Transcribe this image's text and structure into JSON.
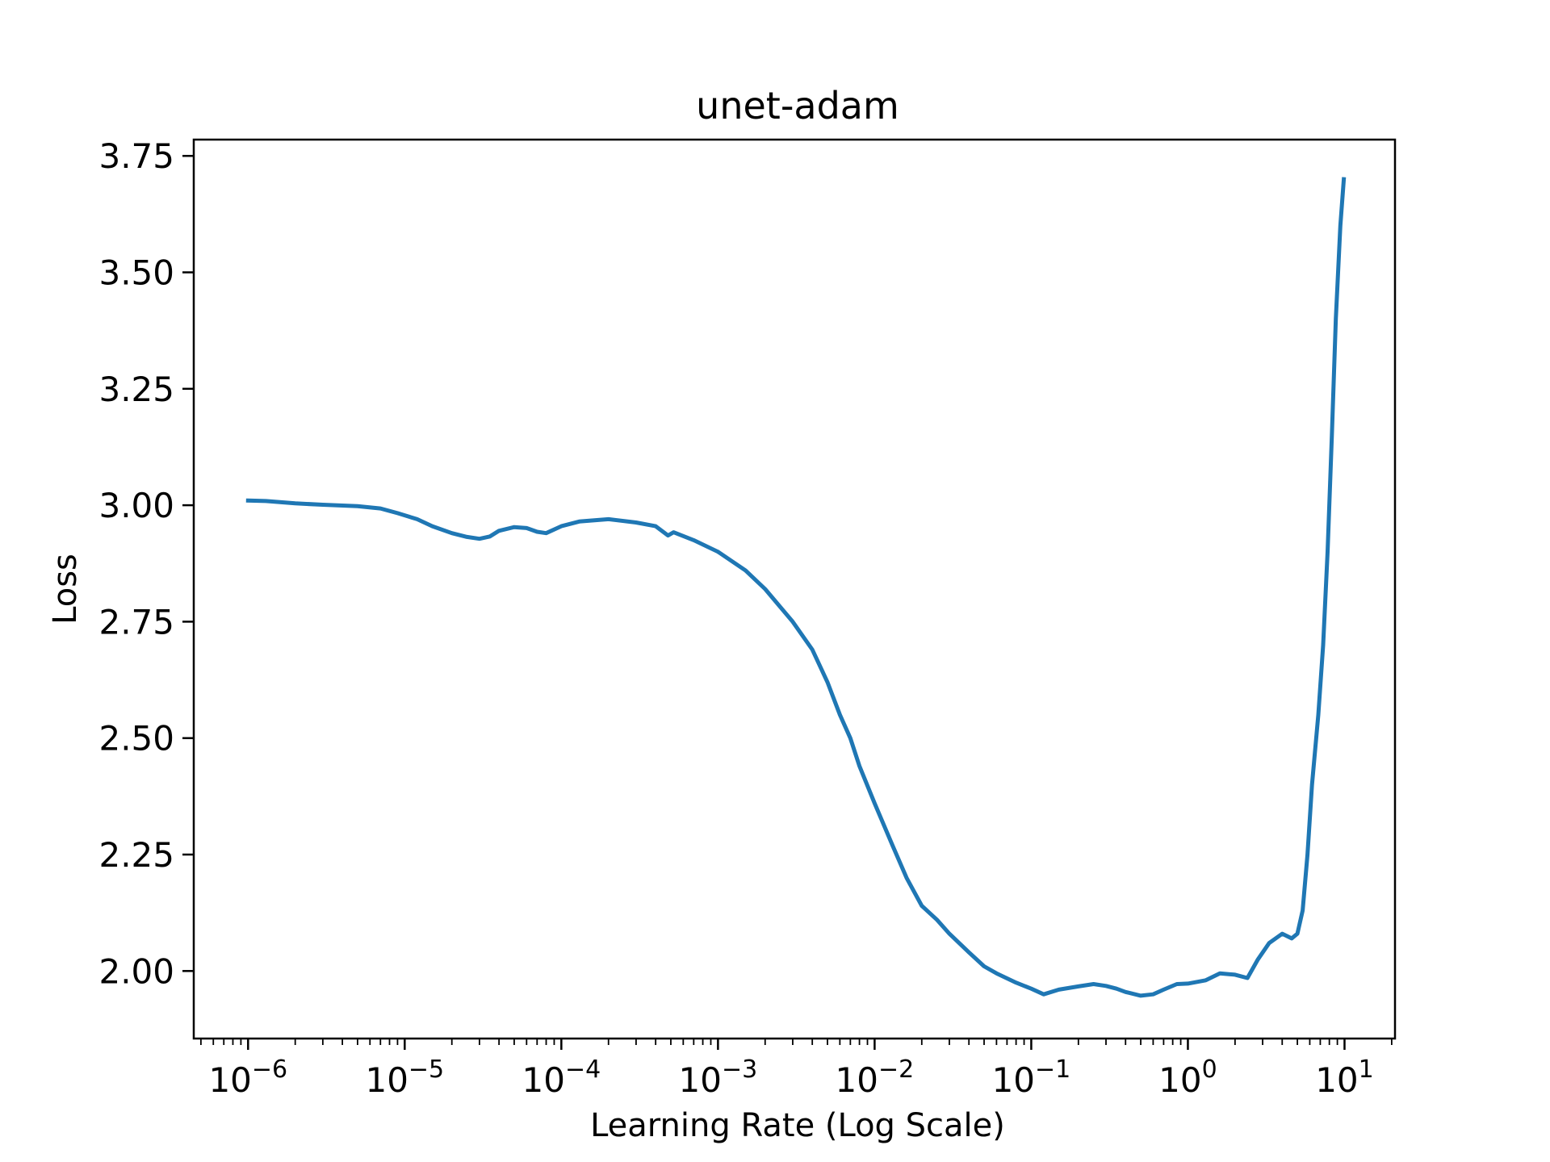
{
  "chart_data": {
    "type": "line",
    "title": "unet-adam",
    "xlabel": "Learning Rate (Log Scale)",
    "ylabel": "Loss",
    "xscale": "log",
    "xlim": [
      4.5e-07,
      21
    ],
    "ylim": [
      1.855,
      3.785
    ],
    "grid": false,
    "legend": "none",
    "line_color": "#1f77b4",
    "x_ticks": [
      {
        "value": 1e-06,
        "base": "10",
        "exp": "−6"
      },
      {
        "value": 1e-05,
        "base": "10",
        "exp": "−5"
      },
      {
        "value": 0.0001,
        "base": "10",
        "exp": "−4"
      },
      {
        "value": 0.001,
        "base": "10",
        "exp": "−3"
      },
      {
        "value": 0.01,
        "base": "10",
        "exp": "−2"
      },
      {
        "value": 0.1,
        "base": "10",
        "exp": "−1"
      },
      {
        "value": 1,
        "base": "10",
        "exp": "0"
      },
      {
        "value": 10,
        "base": "10",
        "exp": "1"
      }
    ],
    "y_ticks": [
      {
        "value": 2.0,
        "label": "2.00"
      },
      {
        "value": 2.25,
        "label": "2.25"
      },
      {
        "value": 2.5,
        "label": "2.50"
      },
      {
        "value": 2.75,
        "label": "2.75"
      },
      {
        "value": 3.0,
        "label": "3.00"
      },
      {
        "value": 3.25,
        "label": "3.25"
      },
      {
        "value": 3.5,
        "label": "3.50"
      },
      {
        "value": 3.75,
        "label": "3.75"
      }
    ],
    "series": [
      {
        "points": [
          [
            1e-06,
            3.01
          ],
          [
            1.3e-06,
            3.009
          ],
          [
            2e-06,
            3.004
          ],
          [
            3e-06,
            3.001
          ],
          [
            5e-06,
            2.998
          ],
          [
            7e-06,
            2.993
          ],
          [
            9e-06,
            2.983
          ],
          [
            1.2e-05,
            2.97
          ],
          [
            1.5e-05,
            2.955
          ],
          [
            2e-05,
            2.94
          ],
          [
            2.5e-05,
            2.932
          ],
          [
            3e-05,
            2.928
          ],
          [
            3.5e-05,
            2.933
          ],
          [
            4e-05,
            2.945
          ],
          [
            5e-05,
            2.953
          ],
          [
            6e-05,
            2.951
          ],
          [
            7e-05,
            2.943
          ],
          [
            8e-05,
            2.94
          ],
          [
            0.0001,
            2.955
          ],
          [
            0.00013,
            2.965
          ],
          [
            0.0002,
            2.97
          ],
          [
            0.0003,
            2.963
          ],
          [
            0.0004,
            2.955
          ],
          [
            0.00048,
            2.935
          ],
          [
            0.00052,
            2.942
          ],
          [
            0.0007,
            2.925
          ],
          [
            0.001,
            2.9
          ],
          [
            0.0015,
            2.86
          ],
          [
            0.002,
            2.82
          ],
          [
            0.003,
            2.75
          ],
          [
            0.004,
            2.69
          ],
          [
            0.005,
            2.62
          ],
          [
            0.006,
            2.55
          ],
          [
            0.007,
            2.5
          ],
          [
            0.008,
            2.44
          ],
          [
            0.01,
            2.36
          ],
          [
            0.013,
            2.27
          ],
          [
            0.016,
            2.2
          ],
          [
            0.02,
            2.14
          ],
          [
            0.025,
            2.11
          ],
          [
            0.03,
            2.08
          ],
          [
            0.04,
            2.04
          ],
          [
            0.05,
            2.01
          ],
          [
            0.06,
            1.995
          ],
          [
            0.08,
            1.975
          ],
          [
            0.1,
            1.962
          ],
          [
            0.12,
            1.95
          ],
          [
            0.15,
            1.96
          ],
          [
            0.2,
            1.967
          ],
          [
            0.25,
            1.972
          ],
          [
            0.3,
            1.968
          ],
          [
            0.35,
            1.962
          ],
          [
            0.4,
            1.955
          ],
          [
            0.5,
            1.947
          ],
          [
            0.6,
            1.95
          ],
          [
            0.7,
            1.96
          ],
          [
            0.85,
            1.972
          ],
          [
            1.0,
            1.973
          ],
          [
            1.3,
            1.98
          ],
          [
            1.6,
            1.995
          ],
          [
            2.0,
            1.992
          ],
          [
            2.4,
            1.985
          ],
          [
            2.8,
            2.025
          ],
          [
            3.3,
            2.06
          ],
          [
            4.0,
            2.08
          ],
          [
            4.6,
            2.07
          ],
          [
            5.0,
            2.08
          ],
          [
            5.4,
            2.13
          ],
          [
            5.8,
            2.25
          ],
          [
            6.2,
            2.4
          ],
          [
            6.8,
            2.55
          ],
          [
            7.3,
            2.7
          ],
          [
            7.8,
            2.9
          ],
          [
            8.3,
            3.15
          ],
          [
            8.8,
            3.4
          ],
          [
            9.4,
            3.6
          ],
          [
            9.9,
            3.7
          ]
        ]
      }
    ]
  }
}
